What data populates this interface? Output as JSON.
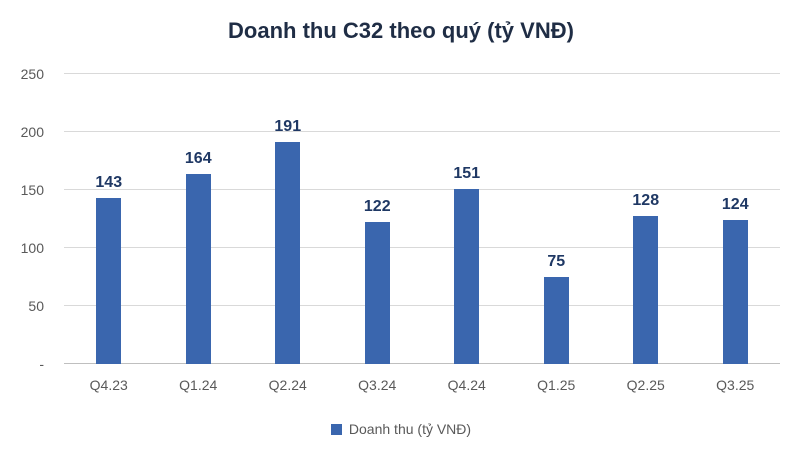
{
  "chart_data": {
    "type": "bar",
    "title": "Doanh thu C32 theo quý (tỷ VNĐ)",
    "categories": [
      "Q4.23",
      "Q1.24",
      "Q2.24",
      "Q3.24",
      "Q4.24",
      "Q1.25",
      "Q2.25",
      "Q3.25"
    ],
    "values": [
      143,
      164,
      191,
      122,
      151,
      75,
      128,
      124
    ],
    "legend": "Doanh thu (tỷ VNĐ)",
    "xlabel": "",
    "ylabel": "",
    "ylim": [
      0,
      250
    ],
    "yticks": [
      0,
      50,
      100,
      150,
      200,
      250
    ],
    "ytick_labels": [
      "-",
      "50",
      "100",
      "150",
      "200",
      "250"
    ],
    "grid": true,
    "legend_position": "bottom",
    "colors": {
      "bar": "#3a66ae",
      "data_label": "#1f3864",
      "axis_text": "#595959",
      "title_text": "#1f2d45",
      "gridline": "#d9d9d9",
      "axis_line": "#bfbfbf"
    }
  }
}
